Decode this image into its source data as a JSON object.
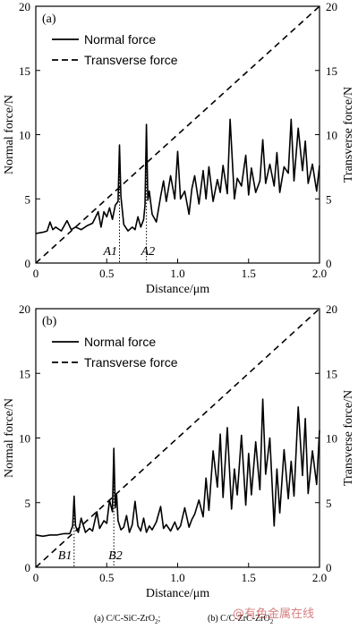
{
  "chart_data": [
    {
      "panel_label": "(a)",
      "type": "line",
      "xlabel": "Distance/μm",
      "ylabel_left": "Normal force/N",
      "ylabel_right": "Transverse force/N",
      "xlim": [
        0,
        2.0
      ],
      "ylim_left": [
        0,
        20
      ],
      "ylim_right": [
        0,
        20
      ],
      "x_ticks": [
        "0",
        "0.5",
        "1.0",
        "1.5",
        "2.0"
      ],
      "y_ticks": [
        "0",
        "5",
        "10",
        "15",
        "20"
      ],
      "legend": {
        "position": "top-left",
        "entries": [
          "Normal force",
          "Transverse force"
        ]
      },
      "grid": false,
      "series": [
        {
          "name": "Normal force",
          "style": "solid",
          "x": [
            0.0,
            0.05,
            0.08,
            0.1,
            0.12,
            0.14,
            0.18,
            0.2,
            0.22,
            0.25,
            0.28,
            0.32,
            0.36,
            0.4,
            0.44,
            0.46,
            0.48,
            0.5,
            0.52,
            0.54,
            0.56,
            0.58,
            0.59,
            0.6,
            0.62,
            0.65,
            0.68,
            0.7,
            0.72,
            0.74,
            0.76,
            0.77,
            0.78,
            0.79,
            0.8,
            0.82,
            0.85,
            0.88,
            0.9,
            0.92,
            0.95,
            0.98,
            1.0,
            1.02,
            1.05,
            1.08,
            1.1,
            1.12,
            1.15,
            1.18,
            1.2,
            1.22,
            1.25,
            1.28,
            1.3,
            1.32,
            1.35,
            1.37,
            1.4,
            1.42,
            1.45,
            1.48,
            1.5,
            1.52,
            1.55,
            1.58,
            1.6,
            1.62,
            1.65,
            1.68,
            1.7,
            1.72,
            1.75,
            1.78,
            1.8,
            1.82,
            1.85,
            1.88,
            1.9,
            1.92,
            1.95,
            1.98,
            2.0
          ],
          "y": [
            2.3,
            2.4,
            2.5,
            3.2,
            2.6,
            2.8,
            2.5,
            2.9,
            3.3,
            2.6,
            2.8,
            2.6,
            2.9,
            3.1,
            4.0,
            2.8,
            4.0,
            3.6,
            4.3,
            3.4,
            4.5,
            4.8,
            9.2,
            5.2,
            3.0,
            2.5,
            2.8,
            2.6,
            3.6,
            2.8,
            3.4,
            4.5,
            10.8,
            4.9,
            5.6,
            3.8,
            3.2,
            5.2,
            6.4,
            4.8,
            6.8,
            5.0,
            8.7,
            5.0,
            5.6,
            3.8,
            5.8,
            6.8,
            4.6,
            7.2,
            5.0,
            7.5,
            4.8,
            6.5,
            5.5,
            7.6,
            5.4,
            11.2,
            5.0,
            6.6,
            6.0,
            8.4,
            5.3,
            7.4,
            5.5,
            6.4,
            9.6,
            6.2,
            7.7,
            6.0,
            8.6,
            5.5,
            7.5,
            7.0,
            11.2,
            6.4,
            10.5,
            7.2,
            9.5,
            6.2,
            7.7,
            5.6,
            7.6
          ]
        },
        {
          "name": "Transverse force",
          "style": "dashed",
          "x": [
            0,
            2.0
          ],
          "y": [
            0,
            20
          ]
        }
      ],
      "annotations": [
        {
          "text": "A1",
          "x": 0.59
        },
        {
          "text": "A2",
          "x": 0.78
        }
      ]
    },
    {
      "panel_label": "(b)",
      "type": "line",
      "xlabel": "Distance/μm",
      "ylabel_left": "Normal force/N",
      "ylabel_right": "Transverse force/N",
      "xlim": [
        0,
        2.0
      ],
      "ylim_left": [
        0,
        20
      ],
      "ylim_right": [
        0,
        20
      ],
      "x_ticks": [
        "0",
        "0.5",
        "1.0",
        "1.5",
        "2.0"
      ],
      "y_ticks": [
        "0",
        "5",
        "10",
        "15",
        "20"
      ],
      "legend": {
        "position": "top-left",
        "entries": [
          "Normal force",
          "Transverse force"
        ]
      },
      "grid": false,
      "series": [
        {
          "name": "Normal force",
          "style": "solid",
          "x": [
            0.0,
            0.05,
            0.1,
            0.15,
            0.2,
            0.24,
            0.26,
            0.27,
            0.28,
            0.3,
            0.32,
            0.35,
            0.38,
            0.4,
            0.43,
            0.45,
            0.48,
            0.5,
            0.52,
            0.54,
            0.55,
            0.56,
            0.57,
            0.58,
            0.6,
            0.62,
            0.64,
            0.66,
            0.68,
            0.7,
            0.72,
            0.74,
            0.76,
            0.78,
            0.8,
            0.82,
            0.85,
            0.88,
            0.9,
            0.92,
            0.95,
            0.98,
            1.0,
            1.02,
            1.05,
            1.08,
            1.1,
            1.12,
            1.15,
            1.18,
            1.2,
            1.22,
            1.25,
            1.28,
            1.3,
            1.32,
            1.35,
            1.38,
            1.4,
            1.42,
            1.45,
            1.48,
            1.5,
            1.52,
            1.55,
            1.58,
            1.6,
            1.62,
            1.65,
            1.68,
            1.7,
            1.72,
            1.75,
            1.78,
            1.8,
            1.82,
            1.85,
            1.88,
            1.9,
            1.92,
            1.95,
            1.98,
            2.0
          ],
          "y": [
            2.5,
            2.4,
            2.5,
            2.5,
            2.6,
            2.6,
            3.2,
            5.5,
            3.2,
            2.7,
            3.8,
            2.7,
            3.0,
            2.8,
            4.3,
            3.0,
            3.6,
            3.4,
            5.2,
            4.3,
            9.2,
            4.6,
            5.6,
            3.6,
            2.9,
            3.1,
            4.0,
            2.7,
            3.3,
            5.1,
            3.2,
            2.8,
            3.8,
            2.7,
            3.2,
            2.9,
            3.5,
            4.7,
            3.0,
            3.3,
            2.8,
            3.5,
            2.9,
            3.2,
            4.6,
            3.1,
            3.7,
            4.1,
            5.2,
            3.9,
            6.9,
            4.4,
            9.0,
            6.2,
            10.3,
            5.4,
            10.8,
            4.5,
            7.6,
            5.6,
            10.2,
            4.8,
            8.8,
            5.6,
            9.7,
            6.0,
            13.0,
            7.2,
            10.0,
            3.2,
            7.6,
            4.2,
            9.1,
            5.3,
            8.2,
            5.5,
            12.4,
            7.1,
            11.5,
            5.7,
            9.0,
            6.4,
            10.6
          ]
        },
        {
          "name": "Transverse force",
          "style": "dashed",
          "x": [
            0,
            2.0
          ],
          "y": [
            0,
            20
          ]
        }
      ],
      "annotations": [
        {
          "text": "B1",
          "x": 0.27
        },
        {
          "text": "B2",
          "x": 0.55
        }
      ]
    }
  ],
  "caption": {
    "part_a": "(a)  C/C-SiC-ZrO",
    "part_a_sub": "2",
    "separator": "; ",
    "part_b": "(b)  C/C-ZrC-ZrO",
    "part_b_sub": "2"
  },
  "watermark": "@有色金属在线"
}
